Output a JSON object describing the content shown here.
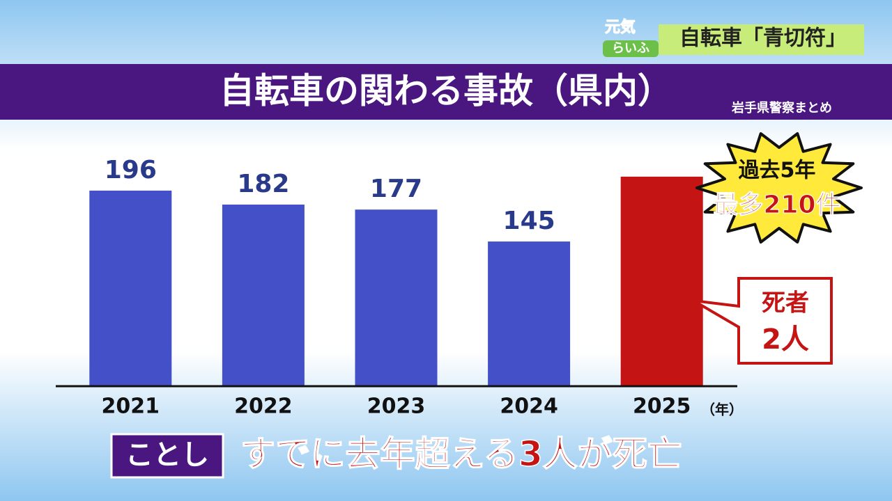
{
  "header": {
    "logo_top": "元気",
    "logo_bottom": "らいふ",
    "topic": "自転車「青切符」"
  },
  "chart_data": {
    "type": "bar",
    "title": "自転車の関わる事故（県内）",
    "source": "岩手県警察まとめ",
    "categories": [
      "2021",
      "2022",
      "2023",
      "2024",
      "2025"
    ],
    "values": [
      196,
      182,
      177,
      145,
      210
    ],
    "value_labels": [
      "196",
      "182",
      "177",
      "145",
      null
    ],
    "colors": [
      "#4450c8",
      "#4450c8",
      "#4450c8",
      "#4450c8",
      "#c41414"
    ],
    "x_unit": "（年）",
    "ylim": [
      0,
      265
    ],
    "annotations": {
      "burst": [
        "過去5年",
        "最多210件"
      ],
      "callout": [
        "死者",
        "2人"
      ]
    }
  },
  "caption": {
    "tag": "ことし",
    "text": "すでに去年超える3人が死亡"
  }
}
